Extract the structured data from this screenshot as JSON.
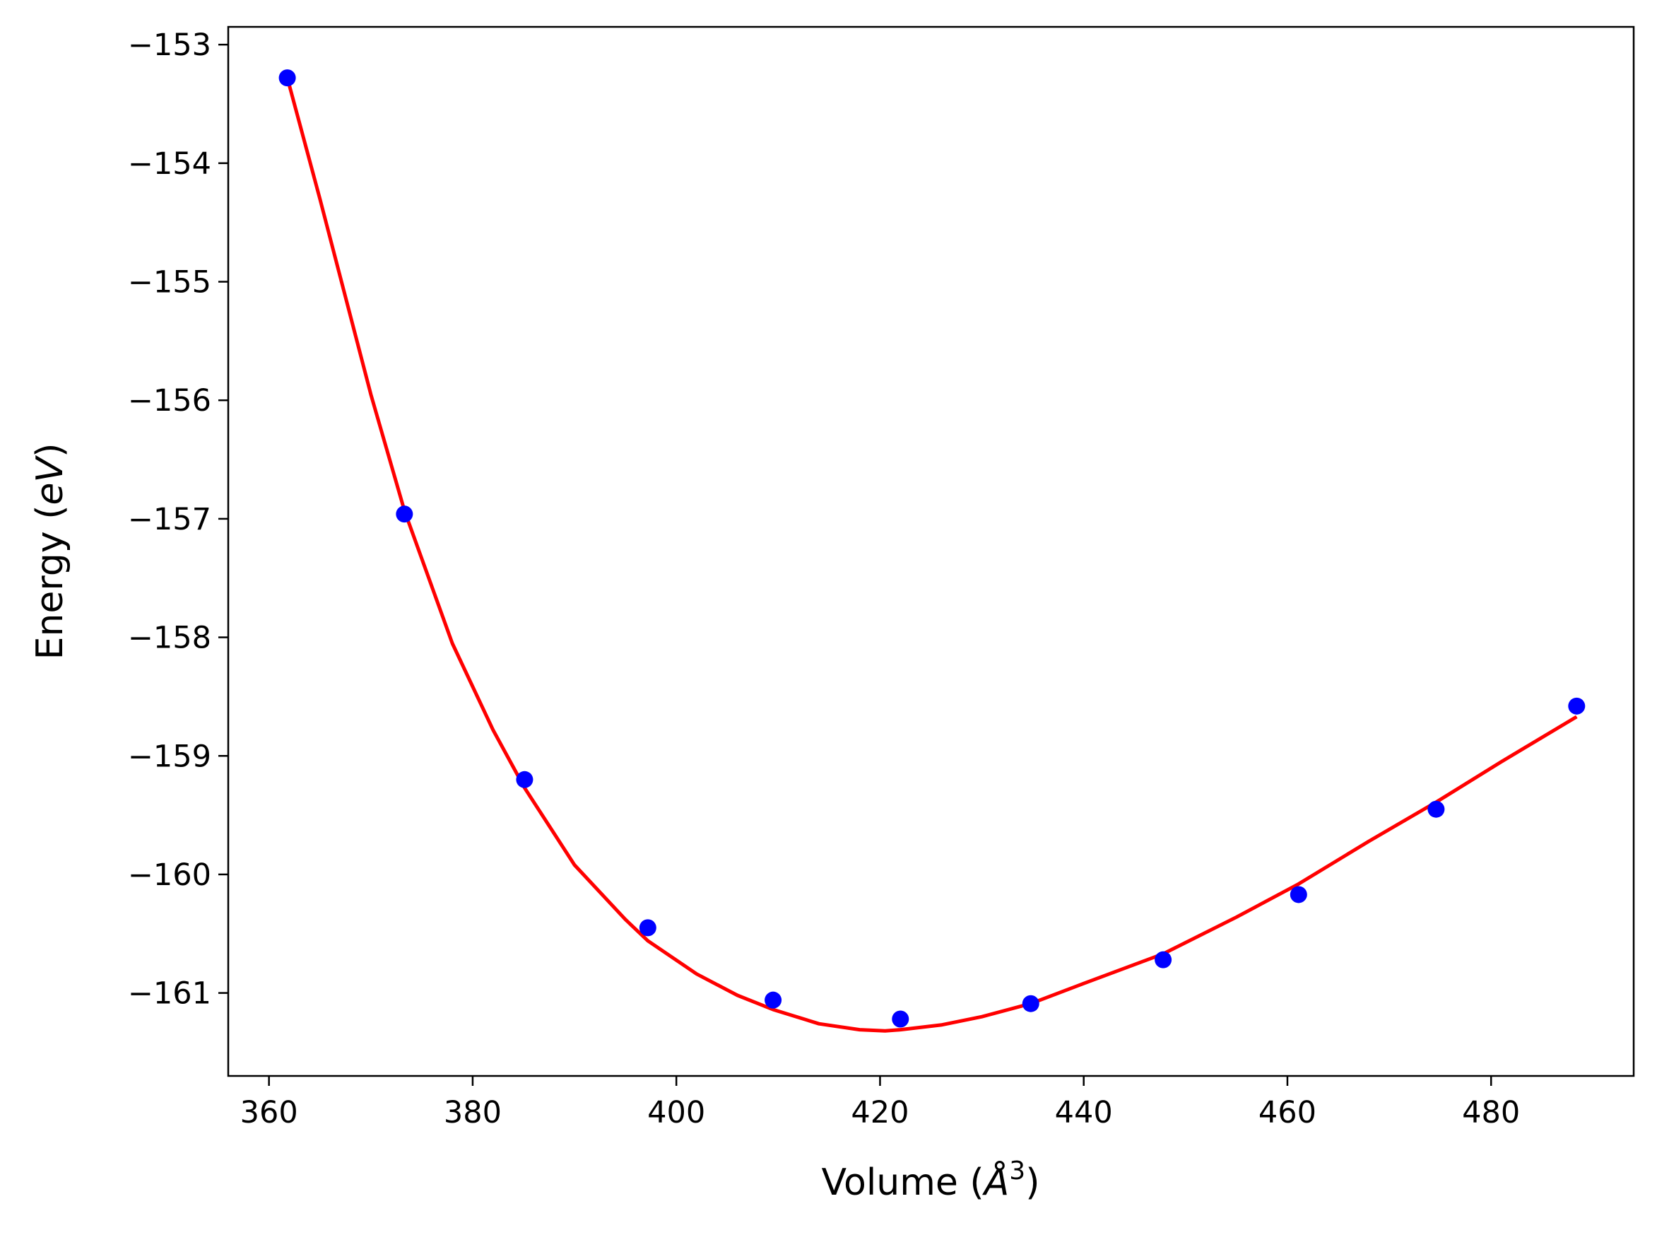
{
  "chart_data": {
    "type": "scatter",
    "title": "",
    "xlabel": {
      "prefix": "Volume (",
      "symbol": "Å",
      "sup": "3",
      "suffix": ")"
    },
    "ylabel": {
      "prefix": "Energy (",
      "italic": "eV",
      "suffix": ")"
    },
    "xlim": [
      356,
      494
    ],
    "ylim": [
      -161.7,
      -152.85
    ],
    "x_ticks": [
      360,
      380,
      400,
      420,
      440,
      460,
      480
    ],
    "x_tick_labels": [
      "360",
      "380",
      "400",
      "420",
      "440",
      "460",
      "480"
    ],
    "y_ticks": [
      -153,
      -154,
      -155,
      -156,
      -157,
      -158,
      -159,
      -160,
      -161
    ],
    "y_tick_labels": [
      "−153",
      "−154",
      "−155",
      "−156",
      "−157",
      "−158",
      "−159",
      "−160",
      "−161"
    ],
    "grid": false,
    "series": [
      {
        "kind": "points",
        "color": "#0000ff",
        "x": [
          361.8,
          373.3,
          385.1,
          397.2,
          409.5,
          422.0,
          434.8,
          447.8,
          461.1,
          474.6,
          488.4
        ],
        "y": [
          -153.28,
          -156.96,
          -159.2,
          -160.45,
          -161.06,
          -161.22,
          -161.09,
          -160.72,
          -160.17,
          -159.45,
          -158.58
        ]
      },
      {
        "kind": "fit-line",
        "color": "#ff0000",
        "x": [
          361.8,
          365,
          370,
          373.3,
          378,
          382,
          385.1,
          390,
          395,
          397.2,
          402,
          406,
          409.5,
          414,
          418,
          420.5,
          422,
          426,
          430,
          434.8,
          440,
          447.8,
          455,
          461.1,
          468,
          474.6,
          481,
          488.4
        ],
        "y": [
          -153.28,
          -154.3,
          -155.95,
          -156.93,
          -158.05,
          -158.78,
          -159.27,
          -159.92,
          -160.38,
          -160.56,
          -160.84,
          -161.02,
          -161.14,
          -161.26,
          -161.31,
          -161.32,
          -161.31,
          -161.27,
          -161.2,
          -161.09,
          -160.92,
          -160.67,
          -160.36,
          -160.08,
          -159.72,
          -159.39,
          -159.05,
          -158.67
        ]
      }
    ]
  }
}
